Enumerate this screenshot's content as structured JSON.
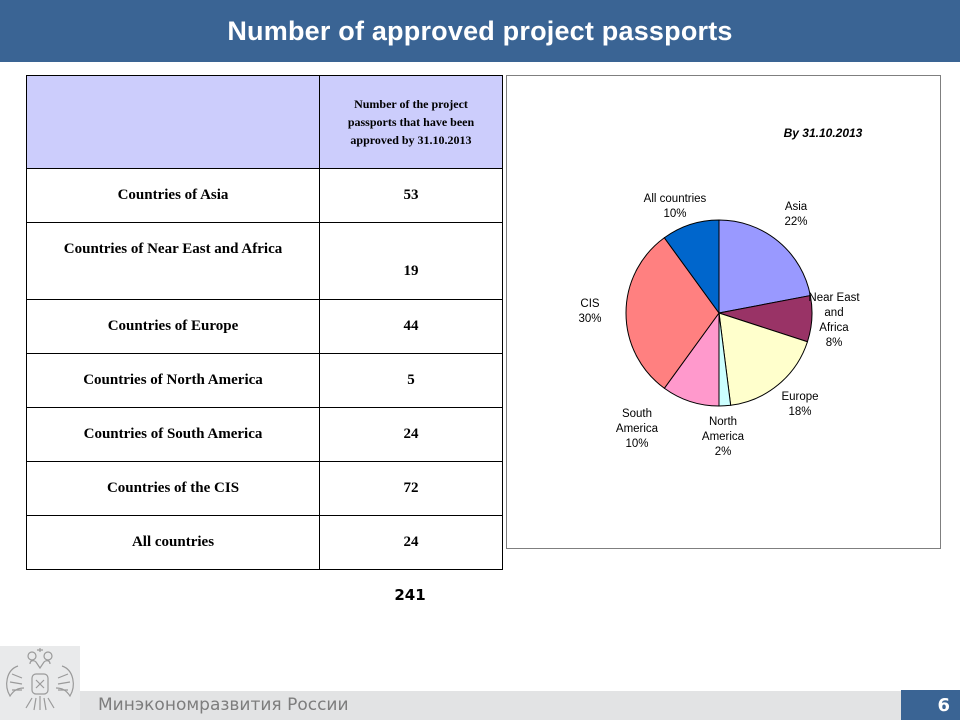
{
  "header": {
    "title": "Number of approved project passports"
  },
  "table": {
    "header_label": "Number of the project passports that have been approved by 31.10.2013",
    "rows": [
      {
        "name": "Countries of Asia",
        "value": "53"
      },
      {
        "name": "Countries of Near East and Africa",
        "value": "19"
      },
      {
        "name": "Countries of Europe",
        "value": "44"
      },
      {
        "name": "Countries of North America",
        "value": "5"
      },
      {
        "name": "Countries of South America",
        "value": "24"
      },
      {
        "name": "Countries of the CIS",
        "value": "72"
      },
      {
        "name": "All countries",
        "value": "24"
      }
    ],
    "total": "241"
  },
  "chart_data": {
    "type": "pie",
    "title": "By 31.10.2013",
    "slices": [
      {
        "label": [
          "Asia"
        ],
        "pct": "22%",
        "value": 22,
        "color": "#9999ff"
      },
      {
        "label": [
          "Near East",
          "and",
          "Africa"
        ],
        "pct": "8%",
        "value": 8,
        "color": "#993366"
      },
      {
        "label": [
          "Europe"
        ],
        "pct": "18%",
        "value": 18,
        "color": "#ffffcc"
      },
      {
        "label": [
          "North",
          "America"
        ],
        "pct": "2%",
        "value": 2,
        "color": "#ccffff"
      },
      {
        "label": [
          "South",
          "America"
        ],
        "pct": "10%",
        "value": 10,
        "color": "#ff99cc"
      },
      {
        "label": [
          "CIS"
        ],
        "pct": "30%",
        "value": 30,
        "color": "#ff8080"
      },
      {
        "label": [
          "All countries"
        ],
        "pct": "10%",
        "value": 10,
        "color": "#0066cc"
      }
    ]
  },
  "footer": {
    "org": "Минэкономразвития России",
    "page_number": "6",
    "emblem_icon": "coat-of-arms-icon"
  }
}
